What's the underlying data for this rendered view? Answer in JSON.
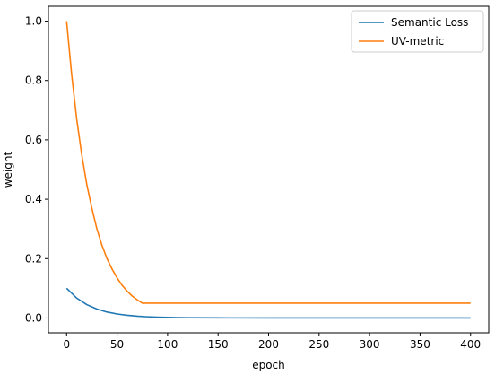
{
  "chart_data": {
    "type": "line",
    "title": "",
    "xlabel": "epoch",
    "ylabel": "weight",
    "xlim": [
      -18,
      418
    ],
    "ylim": [
      -0.05,
      1.05
    ],
    "xticks": [
      0,
      50,
      100,
      150,
      200,
      250,
      300,
      350,
      400
    ],
    "yticks": [
      0.0,
      0.2,
      0.4,
      0.6,
      0.8,
      1.0
    ],
    "xtick_labels": [
      "0",
      "50",
      "100",
      "150",
      "200",
      "250",
      "300",
      "350",
      "400"
    ],
    "ytick_labels": [
      "0.0",
      "0.2",
      "0.4",
      "0.6",
      "0.8",
      "1.0"
    ],
    "grid": false,
    "legend_position": "top-right",
    "series": [
      {
        "name": "Semantic Loss",
        "color": "#1f77b4",
        "x": [
          0,
          10,
          20,
          30,
          40,
          50,
          60,
          70,
          80,
          90,
          100,
          110,
          120,
          150,
          200,
          250,
          300,
          350,
          400
        ],
        "y": [
          0.1,
          0.067,
          0.045,
          0.03,
          0.02,
          0.0135,
          0.009,
          0.006,
          0.004,
          0.0027,
          0.0018,
          0.0012,
          0.0008,
          0.0003,
          0.0001,
          0.0,
          0.0,
          0.0,
          0.0
        ]
      },
      {
        "name": "UV-metric",
        "color": "#ff7f0e",
        "x": [
          0,
          5,
          10,
          15,
          20,
          25,
          30,
          35,
          40,
          45,
          50,
          55,
          60,
          65,
          70,
          75,
          100,
          150,
          200,
          250,
          300,
          350,
          400
        ],
        "y": [
          1.0,
          0.82,
          0.67,
          0.55,
          0.45,
          0.37,
          0.3,
          0.245,
          0.2,
          0.165,
          0.135,
          0.11,
          0.09,
          0.074,
          0.061,
          0.05,
          0.05,
          0.05,
          0.05,
          0.05,
          0.05,
          0.05,
          0.05
        ]
      }
    ]
  }
}
